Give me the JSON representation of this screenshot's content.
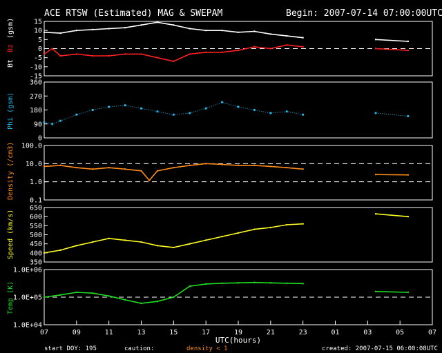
{
  "header": {
    "title": "ACE RTSW (Estimated) MAG & SWEPAM",
    "begin": "Begin: 2007-07-14 07:00:00UTC"
  },
  "footer": {
    "start_doy": "start DOY: 195",
    "caution": "caution:",
    "density_note": "density < 1",
    "created": "created: 2007-07-15 06:00:08UTC",
    "xlabel": "UTC(hours)"
  },
  "x_ticks": [
    "07",
    "09",
    "11",
    "13",
    "15",
    "17",
    "19",
    "21",
    "23",
    "01",
    "03",
    "05",
    "07"
  ],
  "colors": {
    "bt": "#ffffff",
    "bz": "#ff2020",
    "phi": "#20b8e8",
    "density": "#ff8c1a",
    "speed": "#ffff20",
    "temp": "#20e020",
    "axis": "#ffffff"
  },
  "chart_data": [
    {
      "type": "line",
      "name": "mag",
      "ylabel_parts": [
        "Bt",
        "Bz",
        "(gsm)"
      ],
      "ylim": [
        -15,
        15
      ],
      "ticks": [
        "15",
        "10",
        "5",
        "0",
        "-5",
        "-10",
        "-15"
      ],
      "dashed_lines": [
        0
      ],
      "series": [
        {
          "name": "Bt",
          "x": [
            0,
            1,
            2,
            3,
            4,
            5,
            6,
            7,
            8,
            9,
            10,
            11,
            12,
            13,
            14,
            15,
            16,
            20.5,
            22.5
          ],
          "values": [
            9,
            8.5,
            10,
            10.5,
            11,
            11.5,
            13,
            14.5,
            13,
            11,
            10,
            10,
            9,
            9.5,
            8,
            7,
            6,
            5,
            4
          ]
        },
        {
          "name": "Bz",
          "x": [
            0,
            0.5,
            1,
            2,
            3,
            4,
            5,
            6,
            7,
            8,
            9,
            10,
            11,
            12,
            13,
            14,
            15,
            16,
            20.5,
            22.5
          ],
          "values": [
            -3,
            0,
            -4,
            -3,
            -4,
            -4,
            -3,
            -3,
            -5,
            -7,
            -3,
            -2,
            -2,
            -1,
            1,
            0,
            2,
            1,
            0,
            -1
          ]
        }
      ]
    },
    {
      "type": "scatter",
      "name": "phi",
      "ylabel": "Phi (gsm)",
      "ylim": [
        0,
        360
      ],
      "ticks": [
        "360",
        "270",
        "180",
        "90",
        "0"
      ],
      "series": [
        {
          "name": "Phi",
          "x": [
            0,
            0.5,
            1,
            2,
            3,
            4,
            5,
            6,
            7,
            8,
            9,
            10,
            11,
            12,
            13,
            14,
            15,
            16,
            20.5,
            22.5
          ],
          "values": [
            100,
            90,
            110,
            150,
            180,
            200,
            210,
            190,
            170,
            150,
            160,
            190,
            230,
            200,
            180,
            160,
            170,
            150,
            160,
            140
          ]
        }
      ]
    },
    {
      "type": "line",
      "name": "density",
      "ylabel": "Density (/cm3)",
      "yscale": "log",
      "ylim": [
        0.1,
        100
      ],
      "ticks": [
        "100.0",
        "10.0",
        "1.0",
        "0.1"
      ],
      "dashed_lines": [
        1,
        10
      ],
      "series": [
        {
          "name": "Density",
          "x": [
            0,
            1,
            2,
            3,
            4,
            5,
            6,
            6.5,
            7,
            8,
            9,
            10,
            11,
            12,
            13,
            14,
            15,
            16,
            20.5,
            22.5
          ],
          "values": [
            7,
            8,
            6,
            5,
            6,
            5,
            4,
            1.2,
            4,
            6,
            8,
            10,
            9,
            8,
            8,
            7,
            6,
            5,
            2.5,
            2.4
          ]
        }
      ]
    },
    {
      "type": "line",
      "name": "speed",
      "ylabel": "Speed (km/s)",
      "ylim": [
        350,
        650
      ],
      "ticks": [
        "650",
        "600",
        "550",
        "500",
        "450",
        "400",
        "350"
      ],
      "series": [
        {
          "name": "Speed",
          "x": [
            0,
            1,
            2,
            3,
            4,
            5,
            6,
            7,
            8,
            9,
            10,
            11,
            12,
            13,
            14,
            15,
            16,
            20.5,
            22.5
          ],
          "values": [
            400,
            415,
            440,
            460,
            480,
            470,
            460,
            440,
            430,
            450,
            470,
            490,
            510,
            530,
            540,
            555,
            560,
            615,
            600
          ]
        }
      ]
    },
    {
      "type": "line",
      "name": "temp",
      "ylabel": "Temp (K)",
      "yscale": "log",
      "ylim": [
        10000,
        1000000
      ],
      "ticks": [
        "1.0E+06",
        "1.0E+05",
        "1.0E+04"
      ],
      "dashed_lines": [
        100000
      ],
      "series": [
        {
          "name": "Temp",
          "x": [
            0,
            1,
            2,
            3,
            4,
            5,
            6,
            7,
            8,
            9,
            10,
            11,
            12,
            13,
            14,
            15,
            16,
            20.5,
            22.5
          ],
          "values": [
            100000,
            120000,
            150000,
            140000,
            110000,
            80000,
            60000,
            70000,
            100000,
            250000,
            300000,
            320000,
            330000,
            340000,
            330000,
            320000,
            310000,
            160000,
            150000
          ]
        }
      ]
    }
  ]
}
